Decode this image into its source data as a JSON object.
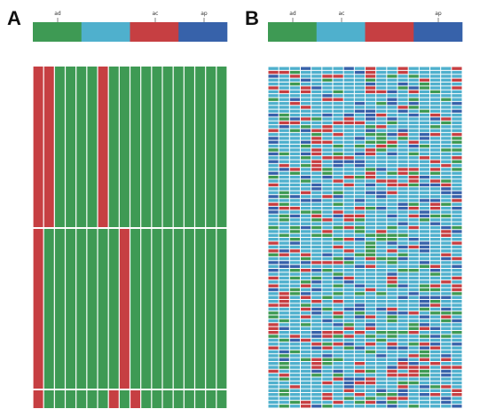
{
  "panels": [
    {
      "label": "A",
      "legend": {
        "colors": [
          "#3e9a54",
          "#4fb0cd",
          "#c63f42",
          "#3762aa"
        ],
        "ticks": [
          "ad",
          "ac",
          "ap"
        ]
      },
      "grid": {
        "columns": 18,
        "blocks": [
          {
            "rows": 1,
            "red_columns": [
              0,
              1,
              6
            ]
          },
          {
            "rows": 1,
            "red_columns": [
              0,
              8
            ]
          },
          {
            "rows": 1,
            "red_columns": [
              0,
              7,
              9
            ]
          }
        ]
      }
    },
    {
      "label": "B",
      "legend": {
        "colors": [
          "#3e9a54",
          "#4fb0cd",
          "#c63f42",
          "#3762aa"
        ],
        "ticks": [
          "ad",
          "ac",
          "ap"
        ]
      },
      "grid": {
        "columns": 18,
        "rows": 88,
        "palette": [
          "#3e9a54",
          "#4fb0cd",
          "#c63f42",
          "#3762aa"
        ],
        "weights": [
          0.12,
          0.62,
          0.14,
          0.12
        ]
      }
    }
  ]
}
